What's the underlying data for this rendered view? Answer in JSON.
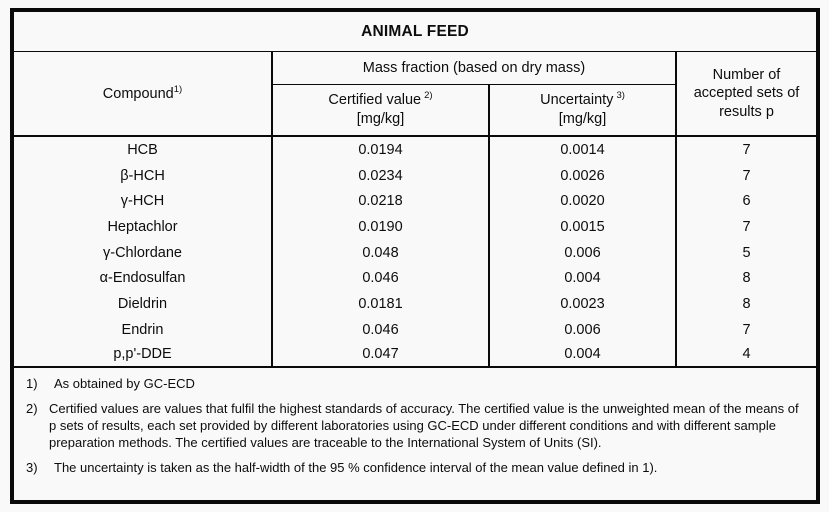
{
  "title": "ANIMAL FEED",
  "table": {
    "headers": {
      "compound": {
        "label": "Compound",
        "sup": "1)"
      },
      "mass_fraction_group": "Mass fraction (based on dry mass)",
      "certified": {
        "label": "Certified value",
        "sup": "2)",
        "unit": "[mg/kg]"
      },
      "uncertainty": {
        "label": "Uncertainty",
        "sup": "3)",
        "unit": "[mg/kg]"
      },
      "accepted_sets": "Number of accepted sets of results p"
    },
    "rows": [
      {
        "compound": "HCB",
        "certified_value": "0.0194",
        "uncertainty": "0.0014",
        "accepted_sets": "7"
      },
      {
        "compound": "β-HCH",
        "certified_value": "0.0234",
        "uncertainty": "0.0026",
        "accepted_sets": "7"
      },
      {
        "compound": "γ-HCH",
        "certified_value": "0.0218",
        "uncertainty": "0.0020",
        "accepted_sets": "6"
      },
      {
        "compound": "Heptachlor",
        "certified_value": "0.0190",
        "uncertainty": "0.0015",
        "accepted_sets": "7"
      },
      {
        "compound": "γ-Chlordane",
        "certified_value": "0.048",
        "uncertainty": "0.006",
        "accepted_sets": "5"
      },
      {
        "compound": "α-Endosulfan",
        "certified_value": "0.046",
        "uncertainty": "0.004",
        "accepted_sets": "8"
      },
      {
        "compound": "Dieldrin",
        "certified_value": "0.0181",
        "uncertainty": "0.0023",
        "accepted_sets": "8"
      },
      {
        "compound": "Endrin",
        "certified_value": "0.046",
        "uncertainty": "0.006",
        "accepted_sets": "7"
      },
      {
        "compound": "p,p'-DDE",
        "certified_value": "0.047",
        "uncertainty": "0.004",
        "accepted_sets": "4"
      }
    ]
  },
  "footnotes": [
    {
      "num": "1)",
      "text": "As obtained by GC-ECD"
    },
    {
      "num": "2)",
      "text": "Certified values are values that fulfil the highest standards of accuracy. The certified value is the unweighted mean of the means of p sets of results, each set provided by different laboratories using GC-ECD under different conditions and with different sample preparation methods. The certified values are traceable to the International System of Units (SI)."
    },
    {
      "num": "3)",
      "text": "The uncertainty is taken as the half-width of the 95 % confidence interval of the mean value defined in 1)."
    }
  ],
  "colors": {
    "border": "#0a0a0a",
    "background": "#f9f9f9",
    "text": "#0d0d0d"
  }
}
